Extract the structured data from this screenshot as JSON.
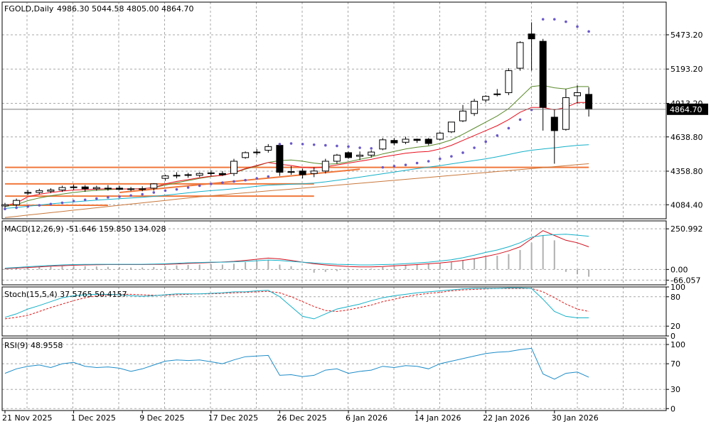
{
  "colors": {
    "background": "#ffffff",
    "grid": "#a8a8a8",
    "candle_up_fill": "#ffffff",
    "candle_down_fill": "#000000",
    "ma_red": "#e8101e",
    "ma_green": "#5a8a2a",
    "ma_cyan": "#14b0c8",
    "ma_orange": "#c8783c",
    "sar_dots": "#6a58c8",
    "trendline": "#f0783c",
    "macd_hist": "#b0b0b0",
    "macd_signal": "#d0101e",
    "macd_main": "#14b0c8",
    "stoch_main": "#14b0c8",
    "stoch_signal": "#e01818",
    "rsi": "#1e8cc8"
  },
  "header": {
    "symbol_timeframe": "FGOLD,Daily",
    "ohlc": "4986.30 5044.58 4805.00 4864.70"
  },
  "current_price_label": "4864.70",
  "chart_data": [
    {
      "type": "candlestick",
      "name": "price",
      "ylim": [
        3970,
        5740
      ],
      "y_ticks": [
        {
          "value": 5473.2,
          "label": "5473.20"
        },
        {
          "value": 5193.2,
          "label": "5193.20"
        },
        {
          "value": 4913.2,
          "label": "4913.20"
        },
        {
          "value": 4638.8,
          "label": "4638.80"
        },
        {
          "value": 4358.8,
          "label": "4358.80"
        },
        {
          "value": 4084.4,
          "label": "4084.40"
        }
      ],
      "x_tick_labels": [
        {
          "index": 0,
          "label": "21 Nov 2025"
        },
        {
          "index": 6,
          "label": "1 Dec 2025"
        },
        {
          "index": 12,
          "label": "9 Dec 2025"
        },
        {
          "index": 18,
          "label": "17 Dec 2025"
        },
        {
          "index": 24,
          "label": "26 Dec 2025"
        },
        {
          "index": 30,
          "label": "6 Jan 2026"
        },
        {
          "index": 36,
          "label": "14 Jan 2026"
        },
        {
          "index": 42,
          "label": "22 Jan 2026"
        },
        {
          "index": 48,
          "label": "30 Jan 2026"
        }
      ],
      "candles": [
        {
          "o": 4075,
          "h": 4100,
          "l": 4045,
          "c": 4085
        },
        {
          "o": 4085,
          "h": 4135,
          "l": 4070,
          "c": 4120
        },
        {
          "o": 4185,
          "h": 4205,
          "l": 4165,
          "c": 4180
        },
        {
          "o": 4185,
          "h": 4215,
          "l": 4170,
          "c": 4200
        },
        {
          "o": 4195,
          "h": 4220,
          "l": 4180,
          "c": 4205
        },
        {
          "o": 4205,
          "h": 4240,
          "l": 4190,
          "c": 4225
        },
        {
          "o": 4225,
          "h": 4250,
          "l": 4205,
          "c": 4230
        },
        {
          "o": 4230,
          "h": 4245,
          "l": 4190,
          "c": 4215
        },
        {
          "o": 4215,
          "h": 4240,
          "l": 4200,
          "c": 4225
        },
        {
          "o": 4220,
          "h": 4245,
          "l": 4200,
          "c": 4220
        },
        {
          "o": 4220,
          "h": 4240,
          "l": 4205,
          "c": 4210
        },
        {
          "o": 4210,
          "h": 4230,
          "l": 4195,
          "c": 4215
        },
        {
          "o": 4215,
          "h": 4235,
          "l": 4195,
          "c": 4215
        },
        {
          "o": 4220,
          "h": 4260,
          "l": 4200,
          "c": 4255
        },
        {
          "o": 4300,
          "h": 4330,
          "l": 4280,
          "c": 4320
        },
        {
          "o": 4320,
          "h": 4350,
          "l": 4300,
          "c": 4325
        },
        {
          "o": 4330,
          "h": 4345,
          "l": 4305,
          "c": 4325
        },
        {
          "o": 4325,
          "h": 4350,
          "l": 4310,
          "c": 4340
        },
        {
          "o": 4340,
          "h": 4365,
          "l": 4320,
          "c": 4345
        },
        {
          "o": 4340,
          "h": 4360,
          "l": 4320,
          "c": 4330
        },
        {
          "o": 4340,
          "h": 4460,
          "l": 4320,
          "c": 4440
        },
        {
          "o": 4470,
          "h": 4520,
          "l": 4460,
          "c": 4510
        },
        {
          "o": 4510,
          "h": 4540,
          "l": 4490,
          "c": 4515
        },
        {
          "o": 4530,
          "h": 4580,
          "l": 4510,
          "c": 4560
        },
        {
          "o": 4570,
          "h": 4580,
          "l": 4320,
          "c": 4350
        },
        {
          "o": 4350,
          "h": 4400,
          "l": 4330,
          "c": 4355
        },
        {
          "o": 4360,
          "h": 4380,
          "l": 4300,
          "c": 4330
        },
        {
          "o": 4340,
          "h": 4390,
          "l": 4310,
          "c": 4360
        },
        {
          "o": 4360,
          "h": 4460,
          "l": 4340,
          "c": 4440
        },
        {
          "o": 4440,
          "h": 4500,
          "l": 4420,
          "c": 4490
        },
        {
          "o": 4510,
          "h": 4520,
          "l": 4460,
          "c": 4470
        },
        {
          "o": 4480,
          "h": 4520,
          "l": 4450,
          "c": 4490
        },
        {
          "o": 4490,
          "h": 4530,
          "l": 4470,
          "c": 4515
        },
        {
          "o": 4540,
          "h": 4630,
          "l": 4530,
          "c": 4615
        },
        {
          "o": 4610,
          "h": 4630,
          "l": 4570,
          "c": 4590
        },
        {
          "o": 4595,
          "h": 4640,
          "l": 4580,
          "c": 4620
        },
        {
          "o": 4620,
          "h": 4625,
          "l": 4590,
          "c": 4610
        },
        {
          "o": 4620,
          "h": 4630,
          "l": 4570,
          "c": 4585
        },
        {
          "o": 4620,
          "h": 4680,
          "l": 4610,
          "c": 4670
        },
        {
          "o": 4680,
          "h": 4760,
          "l": 4670,
          "c": 4760
        },
        {
          "o": 4770,
          "h": 4900,
          "l": 4760,
          "c": 4850
        },
        {
          "o": 4830,
          "h": 4950,
          "l": 4810,
          "c": 4930
        },
        {
          "o": 4940,
          "h": 4980,
          "l": 4920,
          "c": 4970
        },
        {
          "o": 4990,
          "h": 5030,
          "l": 4970,
          "c": 4990
        },
        {
          "o": 5000,
          "h": 5200,
          "l": 4980,
          "c": 5180
        },
        {
          "o": 5200,
          "h": 5420,
          "l": 5180,
          "c": 5410
        },
        {
          "o": 5480,
          "h": 5575,
          "l": 5180,
          "c": 5440
        },
        {
          "o": 5420,
          "h": 5440,
          "l": 4690,
          "c": 4880
        },
        {
          "o": 4800,
          "h": 4860,
          "l": 4420,
          "c": 4690
        },
        {
          "o": 4700,
          "h": 5030,
          "l": 4690,
          "c": 4960
        },
        {
          "o": 4975,
          "h": 5060,
          "l": 4910,
          "c": 5000
        },
        {
          "o": 4986.3,
          "h": 5044.58,
          "l": 4805,
          "c": 4864.7
        }
      ],
      "ma_red": [
        4078,
        4098,
        4150,
        4170,
        4185,
        4196,
        4205,
        4208,
        4212,
        4215,
        4214,
        4214,
        4215,
        4225,
        4255,
        4275,
        4290,
        4305,
        4318,
        4324,
        4348,
        4380,
        4405,
        4430,
        4415,
        4405,
        4390,
        4385,
        4395,
        4410,
        4425,
        4440,
        4455,
        4475,
        4490,
        4505,
        4515,
        4520,
        4540,
        4570,
        4610,
        4650,
        4690,
        4730,
        4780,
        4840,
        4880,
        4880,
        4860,
        4880,
        4920,
        4920
      ],
      "ma_green": [
        4070,
        4085,
        4118,
        4140,
        4158,
        4172,
        4185,
        4195,
        4202,
        4208,
        4212,
        4214,
        4216,
        4225,
        4245,
        4265,
        4282,
        4300,
        4315,
        4325,
        4345,
        4375,
        4400,
        4430,
        4445,
        4450,
        4440,
        4425,
        4415,
        4420,
        4435,
        4455,
        4475,
        4500,
        4520,
        4540,
        4555,
        4565,
        4585,
        4615,
        4660,
        4710,
        4760,
        4810,
        4870,
        4960,
        5050,
        5060,
        5040,
        5030,
        5050,
        5050
      ],
      "ma_cyan": [
        4055,
        4062,
        4072,
        4082,
        4092,
        4100,
        4108,
        4115,
        4122,
        4128,
        4134,
        4140,
        4146,
        4153,
        4162,
        4172,
        4182,
        4192,
        4200,
        4207,
        4215,
        4225,
        4235,
        4244,
        4248,
        4252,
        4256,
        4262,
        4272,
        4284,
        4296,
        4310,
        4324,
        4338,
        4352,
        4366,
        4380,
        4392,
        4404,
        4418,
        4432,
        4446,
        4460,
        4476,
        4495,
        4515,
        4530,
        4540,
        4550,
        4560,
        4570,
        4575
      ],
      "ma_orange": [
        3980,
        3990,
        4000,
        4010,
        4020,
        4030,
        4040,
        4050,
        4060,
        4070,
        4080,
        4090,
        4100,
        4110,
        4120,
        4130,
        4140,
        4150,
        4158,
        4166,
        4174,
        4182,
        4190,
        4198,
        4205,
        4212,
        4220,
        4228,
        4236,
        4244,
        4252,
        4260,
        4268,
        4276,
        4284,
        4292,
        4300,
        4308,
        4316,
        4324,
        4332,
        4340,
        4348,
        4356,
        4364,
        4372,
        4380,
        4388,
        4396,
        4404,
        4412,
        4420
      ],
      "sar": [
        {
          "i": 0,
          "v": 4050
        },
        {
          "i": 1,
          "v": 4060
        },
        {
          "i": 2,
          "v": 4070
        },
        {
          "i": 3,
          "v": 4080
        },
        {
          "i": 4,
          "v": 4090
        },
        {
          "i": 5,
          "v": 4100
        },
        {
          "i": 6,
          "v": 4115
        },
        {
          "i": 7,
          "v": 4125
        },
        {
          "i": 8,
          "v": 4135
        },
        {
          "i": 9,
          "v": 4145
        },
        {
          "i": 10,
          "v": 4150
        },
        {
          "i": 11,
          "v": 4160
        },
        {
          "i": 12,
          "v": 4170
        },
        {
          "i": 13,
          "v": 4185
        },
        {
          "i": 14,
          "v": 4200
        },
        {
          "i": 15,
          "v": 4210
        },
        {
          "i": 16,
          "v": 4225
        },
        {
          "i": 17,
          "v": 4240
        },
        {
          "i": 18,
          "v": 4255
        },
        {
          "i": 19,
          "v": 4265
        },
        {
          "i": 20,
          "v": 4275
        },
        {
          "i": 21,
          "v": 4285
        },
        {
          "i": 22,
          "v": 4300
        },
        {
          "i": 23,
          "v": 4315
        },
        {
          "i": 24,
          "v": 4580
        },
        {
          "i": 25,
          "v": 4585
        },
        {
          "i": 26,
          "v": 4580
        },
        {
          "i": 27,
          "v": 4575
        },
        {
          "i": 28,
          "v": 4570
        },
        {
          "i": 29,
          "v": 4565
        },
        {
          "i": 30,
          "v": 4560
        },
        {
          "i": 31,
          "v": 4550
        },
        {
          "i": 32,
          "v": 4545
        },
        {
          "i": 33,
          "v": 4390
        },
        {
          "i": 34,
          "v": 4400
        },
        {
          "i": 35,
          "v": 4410
        },
        {
          "i": 36,
          "v": 4425
        },
        {
          "i": 37,
          "v": 4440
        },
        {
          "i": 38,
          "v": 4460
        },
        {
          "i": 39,
          "v": 4480
        },
        {
          "i": 40,
          "v": 4510
        },
        {
          "i": 41,
          "v": 4550
        },
        {
          "i": 42,
          "v": 4600
        },
        {
          "i": 43,
          "v": 4650
        },
        {
          "i": 44,
          "v": 4710
        },
        {
          "i": 45,
          "v": 4780
        },
        {
          "i": 46,
          "v": 4860
        },
        {
          "i": 47,
          "v": 5600
        },
        {
          "i": 48,
          "v": 5600
        },
        {
          "i": 49,
          "v": 5580
        },
        {
          "i": 50,
          "v": 5540
        },
        {
          "i": 51,
          "v": 5500
        }
      ],
      "trendlines": [
        {
          "from": {
            "i": 0,
            "v": 4390
          },
          "to": {
            "i": 51,
            "v": 4390
          }
        },
        {
          "from": {
            "i": 0,
            "v": 4155
          },
          "to": {
            "i": 27,
            "v": 4155
          }
        },
        {
          "from": {
            "i": 0,
            "v": 4255
          },
          "to": {
            "i": 27,
            "v": 4255
          }
        },
        {
          "from": {
            "i": 0,
            "v": 4080
          },
          "to": {
            "i": 9,
            "v": 4080
          }
        },
        {
          "from": {
            "i": 10,
            "v": 4185
          },
          "to": {
            "i": 31,
            "v": 4375
          }
        }
      ]
    },
    {
      "type": "bar+line",
      "name": "macd",
      "label": "MACD(12,26,9) -51.646 159.850 134.028",
      "ylim": [
        -95,
        300
      ],
      "y_ticks": [
        {
          "value": 250.992,
          "label": "250.992"
        },
        {
          "value": 0,
          "label": "0.00"
        },
        {
          "value": -66.057,
          "label": "-66.057"
        }
      ],
      "histogram": [
        5,
        8,
        12,
        15,
        18,
        20,
        22,
        20,
        18,
        16,
        14,
        12,
        12,
        15,
        20,
        25,
        28,
        30,
        32,
        30,
        35,
        45,
        55,
        60,
        30,
        20,
        -5,
        -20,
        -15,
        -10,
        -5,
        0,
        5,
        15,
        20,
        25,
        30,
        35,
        40,
        45,
        55,
        65,
        75,
        85,
        95,
        120,
        165,
        210,
        180,
        -15,
        -30,
        -45
      ],
      "signal": [
        5,
        8,
        12,
        16,
        20,
        23,
        26,
        28,
        29,
        30,
        30,
        30,
        30,
        31,
        32,
        34,
        37,
        40,
        43,
        46,
        50,
        56,
        63,
        70,
        65,
        56,
        45,
        35,
        28,
        22,
        18,
        16,
        16,
        18,
        22,
        26,
        30,
        35,
        40,
        47,
        56,
        66,
        80,
        95,
        115,
        140,
        190,
        240,
        210,
        180,
        165,
        140
      ],
      "main": [
        8,
        12,
        17,
        21,
        25,
        28,
        30,
        31,
        32,
        32,
        32,
        32,
        32,
        33,
        35,
        38,
        41,
        43,
        45,
        45,
        47,
        50,
        54,
        58,
        55,
        50,
        45,
        40,
        36,
        32,
        30,
        28,
        28,
        30,
        32,
        36,
        40,
        45,
        52,
        60,
        72,
        88,
        105,
        120,
        140,
        165,
        200,
        210,
        215,
        218,
        212,
        205
      ]
    },
    {
      "type": "line",
      "name": "stochastic",
      "label": "Stoch(15,5,4) 37.5765 50.4157",
      "ylim": [
        0,
        100
      ],
      "y_ticks": [
        {
          "value": 100,
          "label": "100"
        },
        {
          "value": 80,
          "label": "80"
        },
        {
          "value": 20,
          "label": "20"
        },
        {
          "value": 0,
          "label": "0"
        }
      ],
      "main": [
        38,
        45,
        55,
        62,
        70,
        78,
        82,
        84,
        85,
        85,
        84,
        82,
        81,
        82,
        84,
        86,
        86,
        86,
        87,
        88,
        90,
        90,
        92,
        93,
        80,
        60,
        40,
        35,
        45,
        55,
        60,
        65,
        72,
        78,
        82,
        85,
        88,
        90,
        92,
        94,
        96,
        97,
        97,
        97,
        98,
        98,
        97,
        75,
        50,
        40,
        37,
        37
      ],
      "signal": [
        35,
        38,
        42,
        50,
        58,
        65,
        72,
        78,
        82,
        84,
        85,
        85,
        84,
        83,
        83,
        84,
        85,
        86,
        86,
        87,
        88,
        89,
        90,
        91,
        88,
        80,
        70,
        60,
        52,
        50,
        53,
        58,
        63,
        70,
        75,
        80,
        84,
        87,
        89,
        92,
        94,
        95,
        96,
        97,
        97,
        97,
        97,
        90,
        78,
        65,
        55,
        50
      ]
    },
    {
      "type": "line",
      "name": "rsi",
      "label": "RSI(9) 48.9558",
      "ylim": [
        -3,
        110
      ],
      "y_ticks": [
        {
          "value": 100,
          "label": "100"
        },
        {
          "value": 70,
          "label": "70"
        },
        {
          "value": 30,
          "label": "30"
        },
        {
          "value": 0,
          "label": "0"
        }
      ],
      "values": [
        55,
        62,
        66,
        68,
        64,
        70,
        72,
        66,
        64,
        65,
        63,
        58,
        62,
        68,
        74,
        76,
        75,
        76,
        73,
        70,
        76,
        81,
        82,
        83,
        52,
        53,
        50,
        52,
        60,
        62,
        55,
        58,
        60,
        66,
        64,
        67,
        66,
        62,
        70,
        74,
        78,
        82,
        86,
        88,
        89,
        92,
        94,
        54,
        46,
        55,
        57,
        49
      ]
    }
  ]
}
